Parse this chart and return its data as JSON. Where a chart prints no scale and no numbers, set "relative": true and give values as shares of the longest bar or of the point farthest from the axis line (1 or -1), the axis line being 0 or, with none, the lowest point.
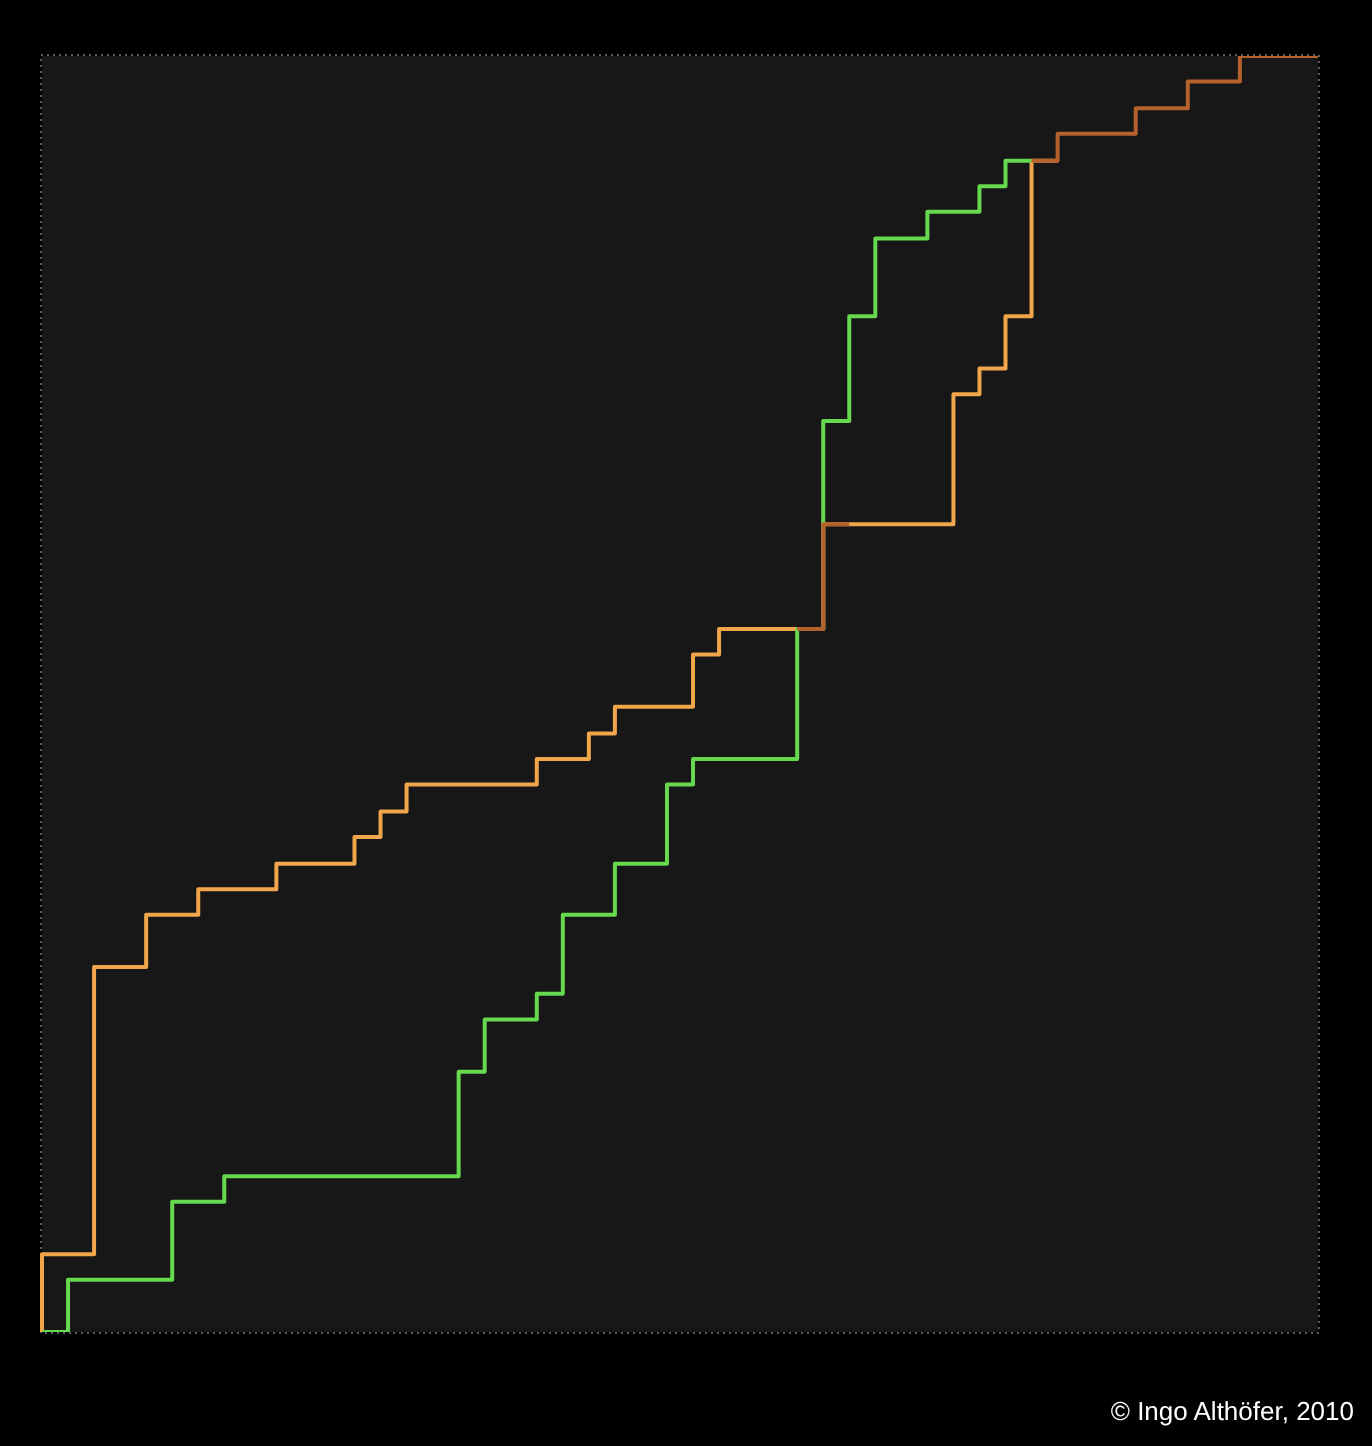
{
  "chart_data": {
    "type": "step",
    "relative": true,
    "tick_labels": false,
    "categories": [
      null,
      null,
      null,
      null,
      null,
      null,
      null,
      null,
      null,
      null,
      null,
      null,
      null,
      null,
      null,
      null,
      null,
      null,
      null,
      null,
      null,
      null,
      null,
      null,
      null,
      null,
      null,
      null,
      null,
      null,
      null,
      null,
      null,
      null,
      null,
      null,
      null,
      null,
      null,
      null,
      null,
      null,
      null,
      null,
      null,
      null,
      null,
      null,
      null,
      null
    ],
    "series": [
      {
        "color": "#f2a64c",
        "values": [
          0,
          0.061,
          0.061,
          0.286,
          0.286,
          0.327,
          0.327,
          0.347,
          0.347,
          0.347,
          0.367,
          0.367,
          0.367,
          0.388,
          0.408,
          0.429,
          0.429,
          0.429,
          0.429,
          0.429,
          0.449,
          0.449,
          0.469,
          0.49,
          0.49,
          0.49,
          0.531,
          0.551,
          0.551,
          0.551,
          0.551,
          0.633,
          0.633,
          0.633,
          0.633,
          0.633,
          0.735,
          0.755,
          0.796,
          0.918,
          null,
          null,
          null,
          null,
          null,
          null,
          null,
          null,
          null,
          null
        ]
      },
      {
        "color": "#66d94f",
        "values": [
          0,
          0,
          0.041,
          0.041,
          0.041,
          0.041,
          0.102,
          0.102,
          0.122,
          0.122,
          0.122,
          0.122,
          0.122,
          0.122,
          0.122,
          0.122,
          0.122,
          0.204,
          0.245,
          0.245,
          0.265,
          0.327,
          0.327,
          0.367,
          0.367,
          0.429,
          0.449,
          0.449,
          0.449,
          0.449,
          0.551,
          0.714,
          0.796,
          0.857,
          0.857,
          0.878,
          0.878,
          0.898,
          0.918,
          null,
          null,
          null,
          null,
          null,
          null,
          null,
          null,
          null,
          null,
          null
        ]
      },
      {
        "color": "#b5612e",
        "values": [
          null,
          null,
          null,
          null,
          null,
          null,
          null,
          null,
          null,
          null,
          null,
          null,
          null,
          null,
          null,
          null,
          null,
          null,
          null,
          null,
          null,
          null,
          null,
          null,
          null,
          null,
          null,
          null,
          null,
          0.551,
          0.551,
          0.633,
          null,
          null,
          null,
          null,
          null,
          null,
          0.918,
          0.918,
          0.939,
          0.939,
          0.939,
          0.959,
          0.959,
          0.98,
          0.98,
          1,
          1,
          1
        ]
      }
    ],
    "annotations": [
      "© Ingo Althöfer, 2010"
    ]
  }
}
